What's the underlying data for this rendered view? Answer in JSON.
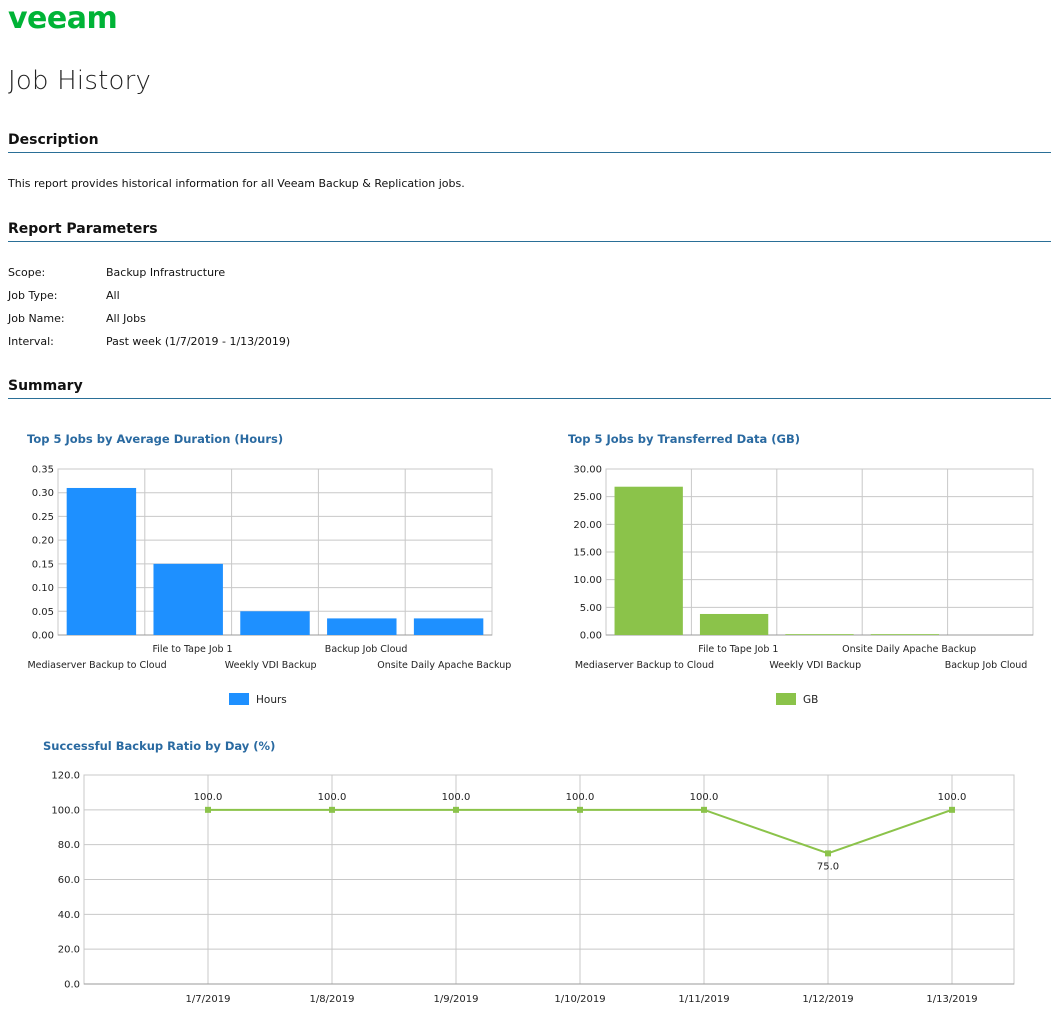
{
  "brand": {
    "logo_text": "veeam",
    "color": "#00b336"
  },
  "report_title": "Job History",
  "description": {
    "heading": "Description",
    "text": "This report provides historical information for all Veeam Backup & Replication jobs."
  },
  "parameters": {
    "heading": "Report Parameters",
    "rows": [
      {
        "key": "Scope:",
        "value": "Backup Infrastructure"
      },
      {
        "key": "Job Type:",
        "value": "All"
      },
      {
        "key": "Job Name:",
        "value": "All Jobs"
      },
      {
        "key": "Interval:",
        "value": "Past week (1/7/2019 - 1/13/2019)"
      }
    ]
  },
  "summary": {
    "heading": "Summary"
  },
  "chart_data": [
    {
      "type": "bar",
      "title": "Top 5 Jobs by Average Duration (Hours)",
      "categories": [
        "Mediaserver Backup to Cloud",
        "File to Tape Job 1",
        "Weekly VDI Backup",
        "Backup Job Cloud",
        "Onsite Daily Apache Backup"
      ],
      "series": [
        {
          "name": "Hours",
          "values": [
            0.31,
            0.15,
            0.05,
            0.035,
            0.035
          ],
          "color": "#1e90ff"
        }
      ],
      "ylim": [
        0,
        0.35
      ],
      "yticks": [
        "0.00",
        "0.05",
        "0.10",
        "0.15",
        "0.20",
        "0.25",
        "0.30",
        "0.35"
      ],
      "grid": true,
      "legend": "bottom"
    },
    {
      "type": "bar",
      "title": "Top 5 Jobs by Transferred Data (GB)",
      "categories": [
        "Mediaserver Backup to Cloud",
        "File to Tape Job 1",
        "Weekly VDI Backup",
        "Onsite Daily Apache Backup",
        "Backup Job Cloud"
      ],
      "series": [
        {
          "name": "GB",
          "values": [
            26.8,
            3.8,
            0.15,
            0.15,
            0
          ],
          "color": "#8bc34a"
        }
      ],
      "ylim": [
        0,
        30
      ],
      "yticks": [
        "0.00",
        "5.00",
        "10.00",
        "15.00",
        "20.00",
        "25.00",
        "30.00"
      ],
      "grid": true,
      "legend": "bottom"
    },
    {
      "type": "line",
      "title": "Successful Backup Ratio by Day (%)",
      "x": [
        "1/7/2019",
        "1/8/2019",
        "1/9/2019",
        "1/10/2019",
        "1/11/2019",
        "1/12/2019",
        "1/13/2019"
      ],
      "series": [
        {
          "values": [
            100,
            100,
            100,
            100,
            100,
            75,
            100
          ],
          "labels": [
            "100.0",
            "100.0",
            "100.0",
            "100.0",
            "100.0",
            "75.0",
            "100.0"
          ],
          "color": "#8bc34a"
        }
      ],
      "ylim": [
        0,
        120
      ],
      "yticks": [
        "0.0",
        "20.0",
        "40.0",
        "60.0",
        "80.0",
        "100.0",
        "120.0"
      ],
      "grid": true
    }
  ]
}
